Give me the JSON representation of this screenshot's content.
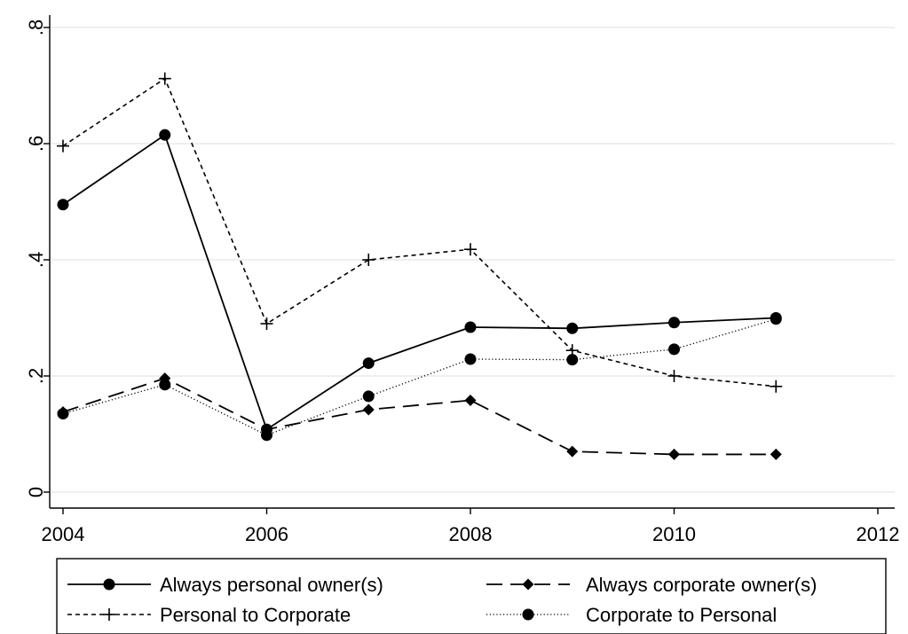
{
  "chart_data": {
    "type": "line",
    "title": "",
    "xlabel": "",
    "ylabel": "",
    "xlim": [
      2004,
      2012
    ],
    "ylim": [
      0,
      0.8
    ],
    "x_ticks": [
      {
        "value": 2004,
        "label": "2004"
      },
      {
        "value": 2006,
        "label": "2006"
      },
      {
        "value": 2008,
        "label": "2008"
      },
      {
        "value": 2010,
        "label": "2010"
      },
      {
        "value": 2012,
        "label": "2012"
      }
    ],
    "y_ticks": [
      {
        "value": 0,
        "label": "0"
      },
      {
        "value": 0.2,
        "label": ".2"
      },
      {
        "value": 0.4,
        "label": ".4"
      },
      {
        "value": 0.6,
        "label": ".6"
      },
      {
        "value": 0.8,
        "label": ".8"
      }
    ],
    "grid": "horizontal",
    "legend_position": "bottom",
    "x": [
      2004,
      2005,
      2006,
      2007,
      2008,
      2009,
      2010,
      2011
    ],
    "series": [
      {
        "key": "always-personal",
        "name": "Always personal owner(s)",
        "marker": "circle",
        "dash": "solid",
        "values": [
          0.495,
          0.615,
          0.108,
          0.222,
          0.284,
          0.282,
          0.292,
          0.3
        ]
      },
      {
        "key": "always-corporate",
        "name": "Always corporate owner(s)",
        "marker": "diamond",
        "dash": "long-dash",
        "values": [
          0.138,
          0.196,
          0.108,
          0.142,
          0.158,
          0.07,
          0.065,
          0.065
        ]
      },
      {
        "key": "personal-to-corporate",
        "name": "Personal to Corporate",
        "marker": "plus",
        "dash": "short-dash",
        "values": [
          0.596,
          0.712,
          0.29,
          0.4,
          0.418,
          0.244,
          0.2,
          0.182
        ]
      },
      {
        "key": "corporate-to-personal",
        "name": "Corporate to Personal",
        "marker": "circle",
        "dash": "dotted",
        "values": [
          0.135,
          0.185,
          0.098,
          0.165,
          0.229,
          0.228,
          0.246,
          0.298
        ]
      }
    ]
  }
}
